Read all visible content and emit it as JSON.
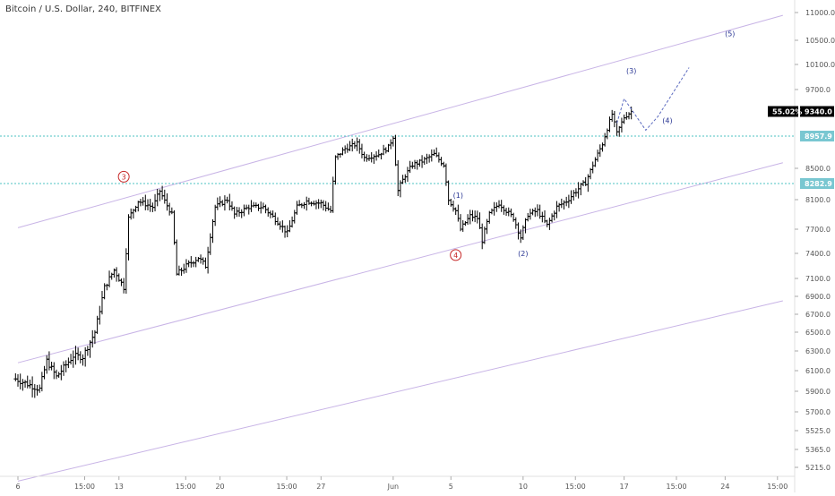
{
  "chart_data": {
    "type": "candlestick",
    "title": "Bitcoin / U.S. Dollar, 240, BITFINEX",
    "interval_minutes": 240,
    "y_ticks": [
      11000.0,
      10500.0,
      10100.0,
      9700.0,
      9340.0,
      8957.9,
      8500.0,
      8282.9,
      8100.0,
      7700.0,
      7400.0,
      7100.0,
      6900.0,
      6700.0,
      6500.0,
      6300.0,
      6100.0,
      5900.0,
      5700.0,
      5525.0,
      5365.0,
      5215.0
    ],
    "y_tick_labels": [
      "11000.0",
      "10500.0",
      "10100.0",
      "9700.0",
      "9340.0",
      "8957.9",
      "8500.0",
      "8282.9",
      "8100.0",
      "7700.0",
      "7400.0",
      "7100.0",
      "6900.0",
      "6700.0",
      "6500.0",
      "6300.0",
      "6100.0",
      "5900.0",
      "5700.0",
      "5525.0",
      "5365.0",
      "5215.0"
    ],
    "x_ticks": [
      {
        "time": "2018-05-06",
        "label": "6"
      },
      {
        "time": "2018-05-10 15:00",
        "label": "15:00"
      },
      {
        "time": "2018-05-13",
        "label": "13"
      },
      {
        "time": "2018-05-17 15:00",
        "label": "15:00"
      },
      {
        "time": "2018-05-20",
        "label": "20"
      },
      {
        "time": "2018-05-24 15:00",
        "label": "15:00"
      },
      {
        "time": "2018-05-27",
        "label": "27"
      },
      {
        "time": "2018-06-01",
        "label": "Jun"
      },
      {
        "time": "2018-06-05",
        "label": "5"
      },
      {
        "time": "2018-06-10",
        "label": "10"
      },
      {
        "time": "2018-06-13 15:00",
        "label": "15:00"
      },
      {
        "time": "2018-06-17",
        "label": "17"
      },
      {
        "time": "2018-06-20 15:00",
        "label": "15:00"
      },
      {
        "time": "2018-06-24",
        "label": "24"
      },
      {
        "time": "2018-06-27 15:00",
        "label": "15:00"
      }
    ],
    "price_badges": [
      {
        "value": 9340.0,
        "label": "9340.0",
        "percent": "55.02%",
        "style": "dark"
      },
      {
        "value": 8957.9,
        "label": "8957.9",
        "style": "teal"
      },
      {
        "value": 8282.9,
        "label": "8282.9",
        "style": "teal"
      }
    ],
    "horizontal_lines": [
      8957.9,
      8282.9
    ],
    "channel_lines": [
      {
        "t1": "2018-05-06",
        "v1": 7720,
        "t2": "2018-06-28",
        "v2": 10950
      },
      {
        "t1": "2018-05-06",
        "v1": 6180,
        "t2": "2018-06-28",
        "v2": 8580
      },
      {
        "t1": "2018-05-06",
        "v1": 5100,
        "t2": "2018-06-28",
        "v2": 6850
      }
    ],
    "projection_path": [
      {
        "t": "2018-06-16 12:00",
        "v": 9160
      },
      {
        "t": "2018-06-17",
        "v": 9550
      },
      {
        "t": "2018-06-18 12:00",
        "v": 9050
      },
      {
        "t": "2018-06-19 08:00",
        "v": 9260
      },
      {
        "t": "2018-06-21 12:00",
        "v": 10050
      }
    ],
    "wave_labels": [
      {
        "label": "3",
        "t": "2018-05-13 08:00",
        "v": 8380,
        "color": "#c62828",
        "circled": true
      },
      {
        "label": "4",
        "t": "2018-06-05 08:00",
        "v": 7380,
        "color": "#c62828",
        "circled": true
      },
      {
        "label": "(1)",
        "t": "2018-06-05 12:00",
        "v": 8150,
        "color": "#283593",
        "circled": false
      },
      {
        "label": "(2)",
        "t": "2018-06-10",
        "v": 7400,
        "color": "#283593",
        "circled": false
      },
      {
        "label": "(3)",
        "t": "2018-06-17 12:00",
        "v": 10000,
        "color": "#283593",
        "circled": false
      },
      {
        "label": "(4)",
        "t": "2018-06-20",
        "v": 9200,
        "color": "#283593",
        "circled": false
      },
      {
        "label": "(5)",
        "t": "2018-06-24 08:00",
        "v": 10620,
        "color": "#283593",
        "circled": false
      }
    ],
    "anchors": [
      {
        "t": "2018-05-05 20:00",
        "v": 6020
      },
      {
        "t": "2018-05-07 12:00",
        "v": 5920
      },
      {
        "t": "2018-05-08",
        "v": 6200
      },
      {
        "t": "2018-05-08 16:00",
        "v": 6040
      },
      {
        "t": "2018-05-09 20:00",
        "v": 6250
      },
      {
        "t": "2018-05-10 12:00",
        "v": 6240
      },
      {
        "t": "2018-05-11 08:00",
        "v": 6500
      },
      {
        "t": "2018-05-12",
        "v": 7000
      },
      {
        "t": "2018-05-12 16:00",
        "v": 7200
      },
      {
        "t": "2018-05-13 08:00",
        "v": 7000
      },
      {
        "t": "2018-05-13 16:00",
        "v": 7850
      },
      {
        "t": "2018-05-14 08:00",
        "v": 8080
      },
      {
        "t": "2018-05-15 08:00",
        "v": 8000
      },
      {
        "t": "2018-05-15 20:00",
        "v": 8200
      },
      {
        "t": "2018-05-16 16:00",
        "v": 7900
      },
      {
        "t": "2018-05-17",
        "v": 7150
      },
      {
        "t": "2018-05-17 16:00",
        "v": 7250
      },
      {
        "t": "2018-05-18 12:00",
        "v": 7350
      },
      {
        "t": "2018-05-19",
        "v": 7250
      },
      {
        "t": "2018-05-19 16:00",
        "v": 8000
      },
      {
        "t": "2018-05-20 12:00",
        "v": 8100
      },
      {
        "t": "2018-05-21",
        "v": 7900
      },
      {
        "t": "2018-05-22",
        "v": 8000
      },
      {
        "t": "2018-05-23",
        "v": 8000
      },
      {
        "t": "2018-05-24",
        "v": 7800
      },
      {
        "t": "2018-05-24 16:00",
        "v": 7650
      },
      {
        "t": "2018-05-25 08:00",
        "v": 8000
      },
      {
        "t": "2018-05-26",
        "v": 8080
      },
      {
        "t": "2018-05-27",
        "v": 8050
      },
      {
        "t": "2018-05-27 16:00",
        "v": 7950
      },
      {
        "t": "2018-05-28",
        "v": 8650
      },
      {
        "t": "2018-05-28 16:00",
        "v": 8780
      },
      {
        "t": "2018-05-29 12:00",
        "v": 8850
      },
      {
        "t": "2018-05-30",
        "v": 8650
      },
      {
        "t": "2018-05-31",
        "v": 8700
      },
      {
        "t": "2018-05-31 16:00",
        "v": 8800
      },
      {
        "t": "2018-06-01",
        "v": 8950
      },
      {
        "t": "2018-06-01 08:00",
        "v": 8200
      },
      {
        "t": "2018-06-01 20:00",
        "v": 8400
      },
      {
        "t": "2018-06-02 08:00",
        "v": 8550
      },
      {
        "t": "2018-06-03",
        "v": 8600
      },
      {
        "t": "2018-06-03 20:00",
        "v": 8700
      },
      {
        "t": "2018-06-04 12:00",
        "v": 8550
      },
      {
        "t": "2018-06-04 20:00",
        "v": 8100
      },
      {
        "t": "2018-06-05 08:00",
        "v": 7950
      },
      {
        "t": "2018-06-05 16:00",
        "v": 7700
      },
      {
        "t": "2018-06-06 08:00",
        "v": 7880
      },
      {
        "t": "2018-06-06 20:00",
        "v": 7850
      },
      {
        "t": "2018-06-07 04:00",
        "v": 7560
      },
      {
        "t": "2018-06-07 16:00",
        "v": 7900
      },
      {
        "t": "2018-06-08 08:00",
        "v": 8050
      },
      {
        "t": "2018-06-08 20:00",
        "v": 7950
      },
      {
        "t": "2018-06-09 08:00",
        "v": 7850
      },
      {
        "t": "2018-06-09 20:00",
        "v": 7600
      },
      {
        "t": "2018-06-10 08:00",
        "v": 7900
      },
      {
        "t": "2018-06-11",
        "v": 7950
      },
      {
        "t": "2018-06-11 16:00",
        "v": 7750
      },
      {
        "t": "2018-06-12 08:00",
        "v": 8000
      },
      {
        "t": "2018-06-13",
        "v": 8080
      },
      {
        "t": "2018-06-13 16:00",
        "v": 8200
      },
      {
        "t": "2018-06-14 08:00",
        "v": 8300
      },
      {
        "t": "2018-06-14 20:00",
        "v": 8550
      },
      {
        "t": "2018-06-15 12:00",
        "v": 8850
      },
      {
        "t": "2018-06-16 04:00",
        "v": 9300
      },
      {
        "t": "2018-06-16 12:00",
        "v": 9000
      },
      {
        "t": "2018-06-17",
        "v": 9250
      },
      {
        "t": "2018-06-17 12:00",
        "v": 9340
      }
    ],
    "colors": {
      "candle": "#000000",
      "channel": "#c8b4e6",
      "level_line": "#4dc3c3",
      "projection": "#5c6bc0",
      "badge_dark": "#000000",
      "badge_teal": "#79c7d1",
      "axis_text": "#555555"
    }
  }
}
